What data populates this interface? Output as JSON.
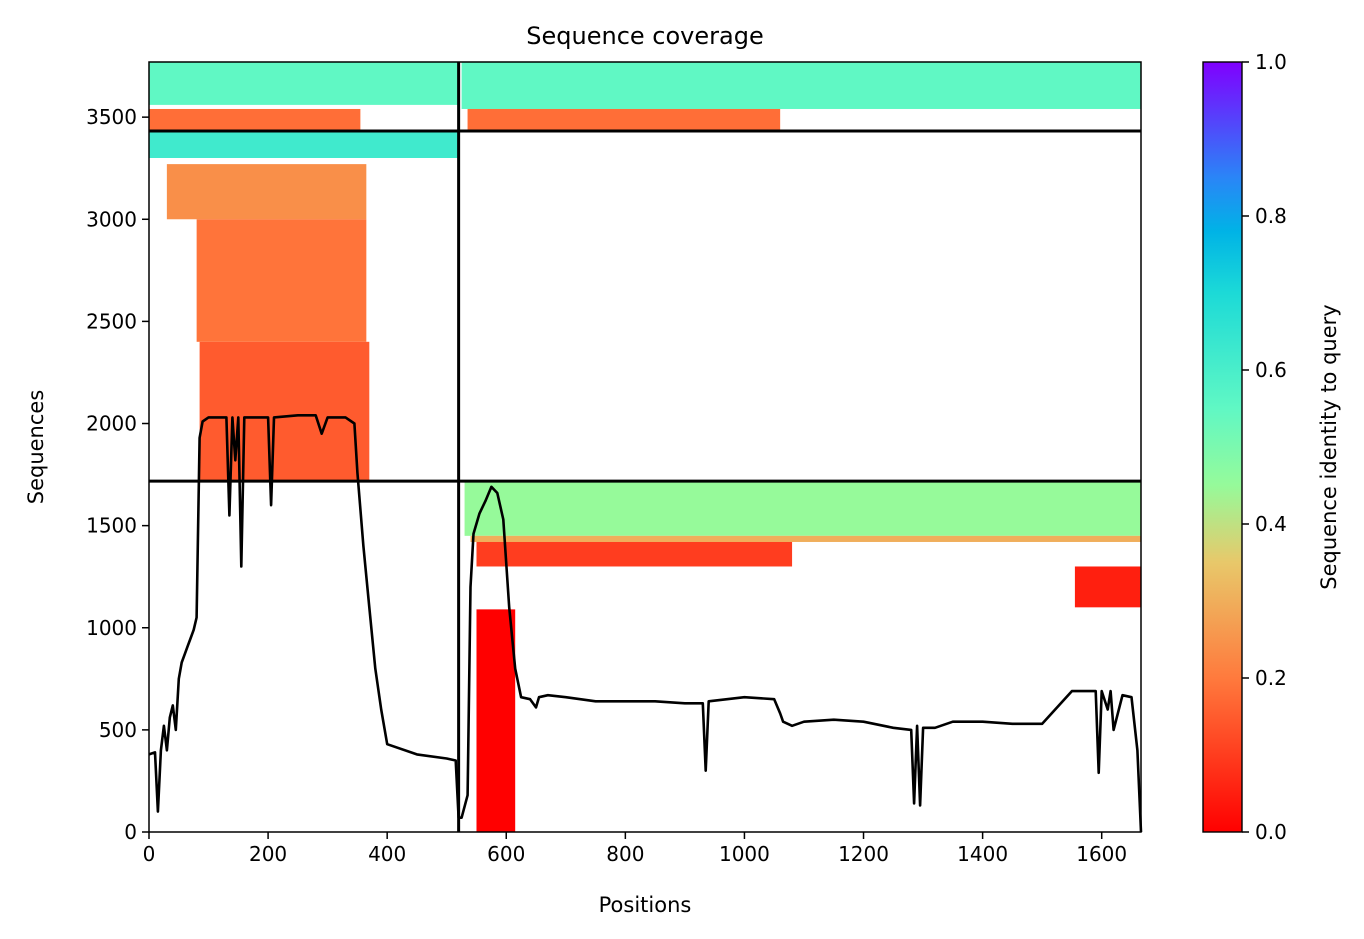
{
  "chart_data": {
    "type": "heatmap",
    "title": "Sequence coverage",
    "xlabel": "Positions",
    "ylabel": "Sequences",
    "colorbar_label": "Sequence identity to query",
    "xlim": [
      0,
      1666
    ],
    "ylim": [
      0,
      3770
    ],
    "colorbar_lim": [
      0,
      1
    ],
    "x_ticks": [
      0,
      200,
      400,
      600,
      800,
      1000,
      1200,
      1400,
      1600
    ],
    "y_ticks": [
      0,
      500,
      1000,
      1500,
      2000,
      2500,
      3000,
      3500
    ],
    "colorbar_ticks": [
      0.0,
      0.2,
      0.4,
      0.6,
      0.8,
      1.0
    ],
    "x_tick_labels": [
      "0",
      "200",
      "400",
      "600",
      "800",
      "1000",
      "1200",
      "1400",
      "1600"
    ],
    "y_tick_labels": [
      "0",
      "500",
      "1000",
      "1500",
      "2000",
      "2500",
      "3000",
      "3500"
    ],
    "colorbar_tick_labels": [
      "0.0",
      "0.2",
      "0.4",
      "0.6",
      "0.8",
      "1.0"
    ],
    "colormap": "rainbow_r",
    "block_boundaries": {
      "x": [
        520
      ],
      "y": [
        1718,
        3432
      ]
    },
    "coverage_regions": [
      {
        "x_start": 0,
        "x_end": 520,
        "y_start": 3560,
        "y_end": 3770,
        "identity": 0.55
      },
      {
        "x_start": 525,
        "x_end": 1666,
        "y_start": 3540,
        "y_end": 3770,
        "identity": 0.55
      },
      {
        "x_start": 0,
        "x_end": 355,
        "y_start": 3432,
        "y_end": 3540,
        "identity": 0.18
      },
      {
        "x_start": 535,
        "x_end": 1060,
        "y_start": 3432,
        "y_end": 3540,
        "identity": 0.18
      },
      {
        "x_start": 0,
        "x_end": 520,
        "y_start": 3300,
        "y_end": 3432,
        "identity": 0.62
      },
      {
        "x_start": 30,
        "x_end": 365,
        "y_start": 3000,
        "y_end": 3270,
        "identity": 0.24
      },
      {
        "x_start": 80,
        "x_end": 365,
        "y_start": 2400,
        "y_end": 3000,
        "identity": 0.19
      },
      {
        "x_start": 85,
        "x_end": 370,
        "y_start": 1718,
        "y_end": 2400,
        "identity": 0.15
      },
      {
        "x_start": 530,
        "x_end": 1666,
        "y_start": 1450,
        "y_end": 1718,
        "identity": 0.45
      },
      {
        "x_start": 540,
        "x_end": 1666,
        "y_start": 1420,
        "y_end": 1450,
        "identity": 0.3
      },
      {
        "x_start": 550,
        "x_end": 1080,
        "y_start": 1300,
        "y_end": 1420,
        "identity": 0.1
      },
      {
        "x_start": 1555,
        "x_end": 1666,
        "y_start": 1100,
        "y_end": 1300,
        "identity": 0.05
      },
      {
        "x_start": 550,
        "x_end": 615,
        "y_start": 0,
        "y_end": 1090,
        "identity": 0.0
      }
    ],
    "coverage_line": {
      "x": [
        0,
        10,
        15,
        20,
        25,
        30,
        35,
        40,
        45,
        50,
        55,
        60,
        65,
        70,
        75,
        80,
        85,
        90,
        100,
        130,
        135,
        140,
        145,
        150,
        155,
        160,
        200,
        205,
        210,
        250,
        280,
        290,
        300,
        330,
        345,
        350,
        360,
        370,
        380,
        390,
        400,
        450,
        500,
        515,
        520,
        525,
        535,
        540,
        545,
        555,
        565,
        575,
        585,
        595,
        605,
        615,
        625,
        640,
        650,
        655,
        670,
        700,
        750,
        800,
        850,
        900,
        930,
        935,
        940,
        1000,
        1050,
        1060,
        1065,
        1080,
        1100,
        1150,
        1200,
        1250,
        1280,
        1285,
        1290,
        1295,
        1300,
        1320,
        1350,
        1400,
        1450,
        1500,
        1550,
        1560,
        1590,
        1595,
        1600,
        1610,
        1615,
        1620,
        1635,
        1650,
        1660,
        1666
      ],
      "y": [
        380,
        390,
        100,
        400,
        520,
        400,
        560,
        620,
        500,
        750,
        830,
        870,
        910,
        950,
        990,
        1050,
        1930,
        2010,
        2030,
        2030,
        1550,
        2030,
        1820,
        2030,
        1300,
        2030,
        2030,
        1600,
        2030,
        2040,
        2040,
        1950,
        2030,
        2030,
        2000,
        1760,
        1400,
        1100,
        800,
        600,
        430,
        380,
        360,
        350,
        70,
        70,
        180,
        1200,
        1460,
        1560,
        1620,
        1690,
        1660,
        1530,
        1100,
        800,
        660,
        650,
        610,
        660,
        670,
        660,
        640,
        640,
        640,
        630,
        630,
        300,
        640,
        660,
        650,
        580,
        540,
        520,
        540,
        550,
        540,
        510,
        500,
        140,
        520,
        130,
        510,
        510,
        540,
        540,
        530,
        530,
        690,
        690,
        690,
        290,
        690,
        600,
        690,
        500,
        670,
        660,
        400,
        0
      ]
    }
  }
}
